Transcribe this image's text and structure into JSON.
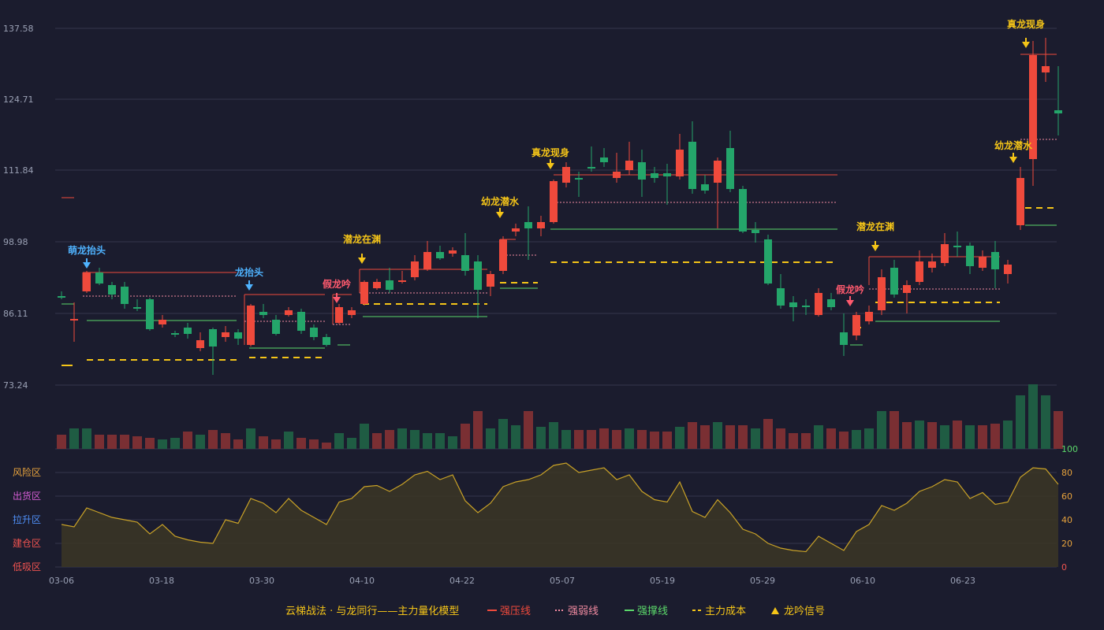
{
  "chart_data": {
    "type": "candlestick",
    "price_axis": {
      "range": [
        73.24,
        137.58
      ],
      "ticks": [
        "137.58",
        "124.71",
        "111.84",
        "98.98",
        "86.11",
        "73.24"
      ]
    },
    "x_axis": {
      "labels": [
        "03-06",
        "03-18",
        "03-30",
        "04-10",
        "04-22",
        "05-07",
        "05-19",
        "05-29",
        "06-10",
        "06-23"
      ]
    },
    "volume_axis": {
      "label": "100"
    },
    "indicator_axis": {
      "ticks": [
        "80",
        "60",
        "40",
        "20",
        "0"
      ]
    },
    "zones": [
      {
        "label": "风险区",
        "color": "#e6a23c"
      },
      {
        "label": "出货区",
        "color": "#d35cd3"
      },
      {
        "label": "拉升区",
        "color": "#4f8ff7"
      },
      {
        "label": "建仓区",
        "color": "#ef5350"
      },
      {
        "label": "低吸区",
        "color": "#ef5350"
      }
    ],
    "colors": {
      "up": "#ef4a3c",
      "down": "#24a56a",
      "pressure": "#ef4a3c",
      "weak": "#f08aa0",
      "support": "#5bd86a",
      "cost": "#f5c518",
      "signal_gold": "#f5c518",
      "signal_blue": "#4fb3ff",
      "signal_red": "#ff5a6e",
      "indicator": "#c9a227"
    },
    "signals": [
      {
        "label": "萌龙抬头",
        "color": "#4fb3ff"
      },
      {
        "label": "龙抬头",
        "color": "#4fb3ff"
      },
      {
        "label": "潜龙在渊",
        "color": "#f5c518"
      },
      {
        "label": "假龙吟",
        "color": "#ff5a6e"
      },
      {
        "label": "幼龙潜水",
        "color": "#f5c518"
      },
      {
        "label": "真龙现身",
        "color": "#f5c518"
      },
      {
        "label": "假龙吟",
        "color": "#ff5a6e"
      },
      {
        "label": "潜龙在渊",
        "color": "#f5c518"
      },
      {
        "label": "幼龙潜水",
        "color": "#f5c518"
      },
      {
        "label": "真龙现身",
        "color": "#f5c518"
      }
    ],
    "legend": {
      "title": "云梯战法 · 与龙同行——主力量化模型",
      "items": [
        {
          "label": "强压线",
          "style": "solid",
          "color": "#ef4a3c"
        },
        {
          "label": "强弱线",
          "style": "dotted",
          "color": "#f08aa0"
        },
        {
          "label": "强撑线",
          "style": "solid",
          "color": "#5bd86a"
        },
        {
          "label": "主力成本",
          "style": "dashed",
          "color": "#f5c518"
        },
        {
          "label": "龙吟信号",
          "style": "triangle",
          "color": "#f5c518"
        }
      ]
    }
  }
}
